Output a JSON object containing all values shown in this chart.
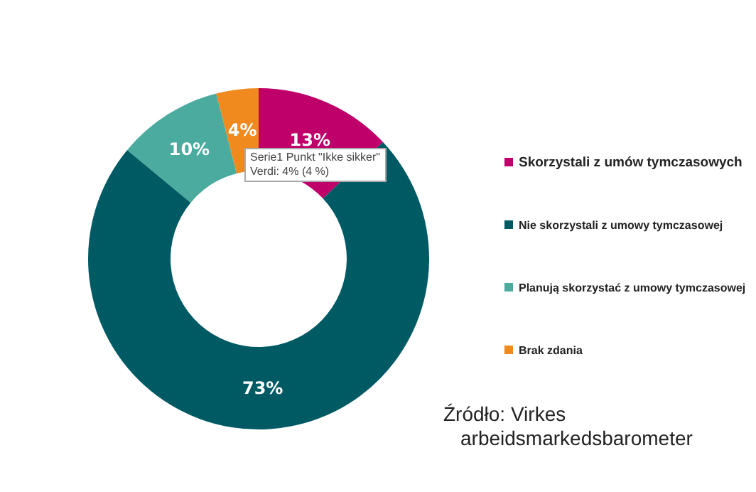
{
  "chart_data": {
    "type": "donut",
    "categories": [
      "Skorzystali z umów tymczasowych",
      "Nie skorzystali z umowy tymczasowej",
      "Planują skorzystać z umowy tymczasowej",
      "Brak zdania"
    ],
    "values": [
      13,
      73,
      10,
      4
    ],
    "value_labels": [
      "13%",
      "73%",
      "10%",
      "4%"
    ],
    "colors": [
      "#c0006a",
      "#005a64",
      "#4aab9e",
      "#f08a1e"
    ],
    "legend": "right",
    "annotations": [
      "Serie1 Punkt \"Ikke sikker\"\nVerdi: 4% (4 %)",
      "Źródło: Virkes\narbeidsmarkedsbarometer"
    ]
  }
}
